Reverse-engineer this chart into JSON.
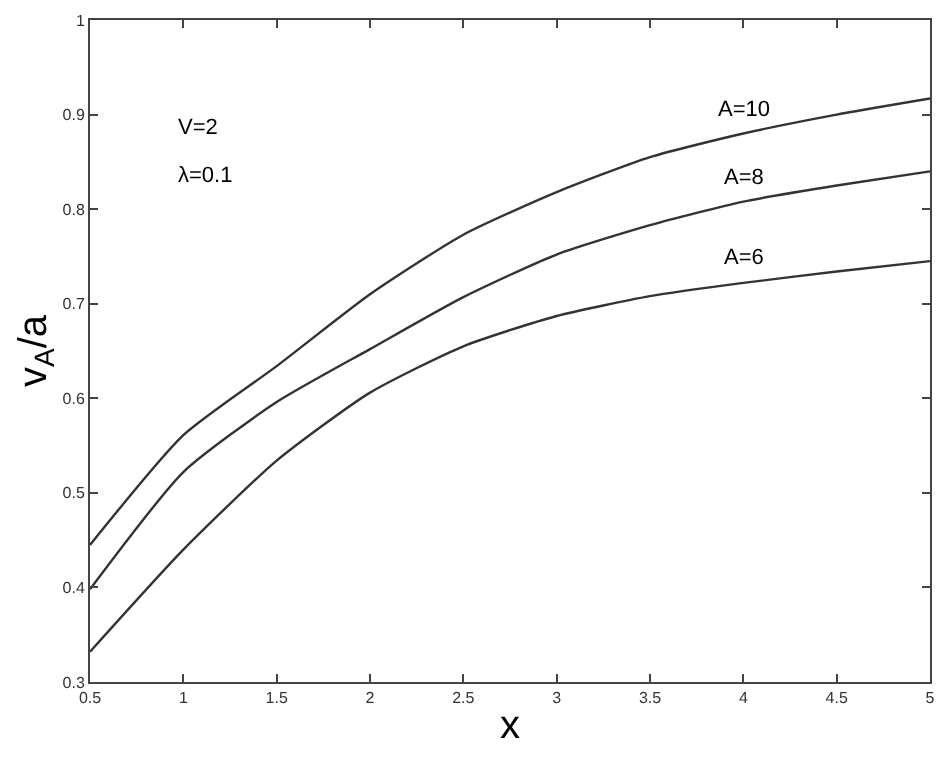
{
  "chart_data": {
    "type": "line",
    "xlabel": "x",
    "ylabel": "v$_{A}$/a",
    "x": [
      0.5,
      1,
      1.5,
      2,
      2.5,
      3,
      3.5,
      4,
      4.5,
      5
    ],
    "series": [
      {
        "name": "A=10",
        "color": "#333333",
        "values": [
          0.445,
          0.561,
          0.634,
          0.71,
          0.773,
          0.818,
          0.855,
          0.88,
          0.9,
          0.917
        ]
      },
      {
        "name": "A=8",
        "color": "#333333",
        "values": [
          0.398,
          0.522,
          0.596,
          0.652,
          0.707,
          0.752,
          0.783,
          0.808,
          0.825,
          0.84
        ]
      },
      {
        "name": "A=6",
        "color": "#333333",
        "values": [
          0.332,
          0.44,
          0.534,
          0.606,
          0.655,
          0.687,
          0.708,
          0.722,
          0.734,
          0.745
        ]
      }
    ],
    "annotations": [
      "V=2",
      "λ=0.1"
    ],
    "xlim": [
      0.5,
      5
    ],
    "xticks": [
      0.5,
      1,
      1.5,
      2,
      2.5,
      3,
      3.5,
      4,
      4.5,
      5
    ],
    "ylim": [
      0.3,
      1
    ],
    "yticks": [
      0.3,
      0.4,
      0.5,
      0.6,
      0.7,
      0.8,
      0.9,
      1
    ],
    "grid": false,
    "legend": false,
    "marker": "none",
    "line_style": "solid"
  }
}
